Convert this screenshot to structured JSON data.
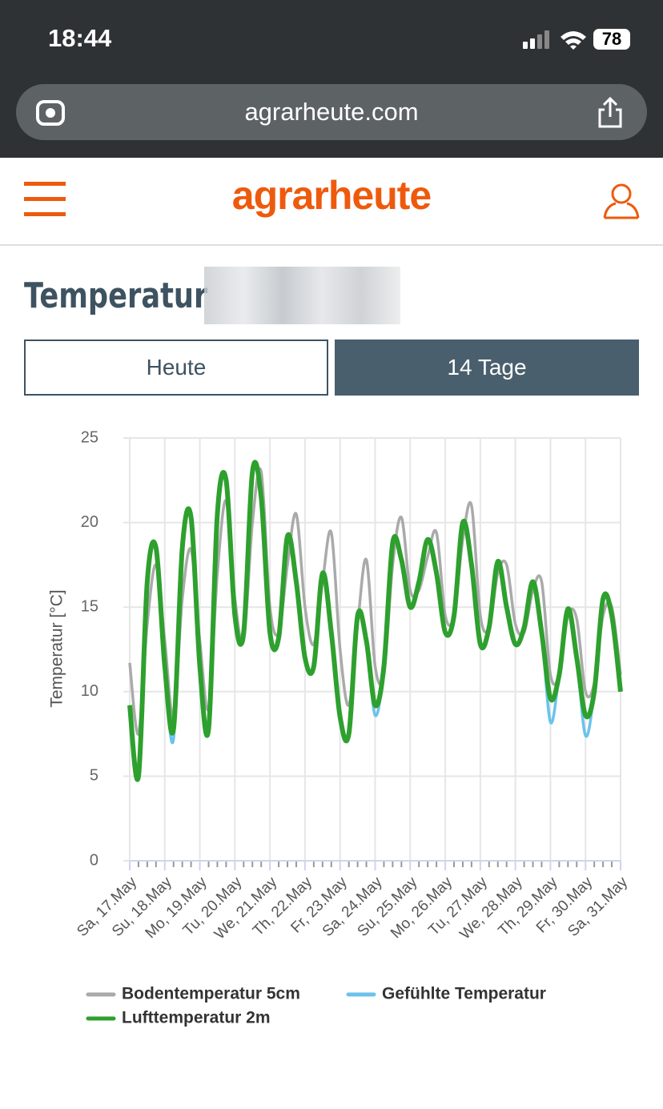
{
  "status_bar": {
    "time": "18:44",
    "battery": "78"
  },
  "browser": {
    "url": "agrarheute.com"
  },
  "header": {
    "logo": "agrarheute"
  },
  "heading": "Temperatur",
  "tabs": [
    "Heute",
    "14 Tage"
  ],
  "chart_data": {
    "type": "line",
    "y_label": "Temperatur [°C]",
    "x": [
      0,
      0.25,
      0.5,
      0.75,
      1,
      1.25,
      1.5,
      1.75,
      2,
      2.25,
      2.5,
      2.75,
      3,
      3.25,
      3.5,
      3.75,
      4,
      4.25,
      4.5,
      4.75,
      5,
      5.25,
      5.5,
      5.75,
      6,
      6.25,
      6.5,
      6.75,
      7,
      7.25,
      7.5,
      7.75,
      8,
      8.25,
      8.5,
      8.75,
      9,
      9.25,
      9.5,
      9.75,
      10,
      10.25,
      10.5,
      10.75,
      11,
      11.25,
      11.5,
      11.75,
      12,
      12.25,
      12.5,
      12.75,
      13,
      13.25,
      13.5,
      13.75,
      14
    ],
    "xlim": [
      0,
      14
    ],
    "xticks": [
      {
        "value": 0,
        "label": "Sa, 17.May"
      },
      {
        "value": 1,
        "label": "Su, 18.May"
      },
      {
        "value": 2,
        "label": "Mo, 19.May"
      },
      {
        "value": 3,
        "label": "Tu, 20.May"
      },
      {
        "value": 4,
        "label": "We, 21.May"
      },
      {
        "value": 5,
        "label": "Th, 22.May"
      },
      {
        "value": 6,
        "label": "Fr, 23.May"
      },
      {
        "value": 7,
        "label": "Sa, 24.May"
      },
      {
        "value": 8,
        "label": "Su, 25.May"
      },
      {
        "value": 9,
        "label": "Mo, 26.May"
      },
      {
        "value": 10,
        "label": "Tu, 27.May"
      },
      {
        "value": 11,
        "label": "We, 28.May"
      },
      {
        "value": 12,
        "label": "Th, 29.May"
      },
      {
        "value": 13,
        "label": "Fr, 30.May"
      },
      {
        "value": 14,
        "label": "Sa, 31.May"
      }
    ],
    "ylim": [
      0,
      25
    ],
    "yticks": [
      0,
      5,
      10,
      15,
      20,
      25
    ],
    "grid": true,
    "series": [
      {
        "name": "Bodentemperatur 5cm",
        "color": "#aaaaaa",
        "values": [
          11.7,
          7.5,
          14,
          17.5,
          13,
          8.5,
          15.5,
          18.4,
          13,
          9,
          17,
          21.3,
          15.5,
          13,
          20,
          23,
          15,
          13.5,
          17.5,
          20.5,
          15,
          12.8,
          16.5,
          19.4,
          12.5,
          9.2,
          14,
          17.8,
          11.5,
          11,
          17.5,
          20.3,
          16,
          16,
          18,
          19.4,
          14.5,
          14.5,
          19,
          21,
          14.5,
          13.8,
          17,
          17.5,
          14,
          13.5,
          16,
          16.5,
          11,
          11,
          14.5,
          14.3,
          10,
          10.5,
          14.5,
          15,
          11
        ]
      },
      {
        "name": "Gefühlte Temperatur",
        "color": "#6cc3ea",
        "values": [
          9.2,
          5,
          16.5,
          18.5,
          11.5,
          7.2,
          18.5,
          20.3,
          11.5,
          7.8,
          20.5,
          22.5,
          14.5,
          13.5,
          23,
          21.5,
          13.5,
          13.2,
          19.2,
          16.5,
          12,
          11.5,
          17,
          13.5,
          8.5,
          7.5,
          14.5,
          13,
          8.6,
          11.5,
          18.8,
          17.8,
          15,
          16.5,
          19,
          17,
          13.5,
          14.5,
          20,
          17.5,
          12.8,
          13.8,
          17.7,
          15,
          12.8,
          13.8,
          16.5,
          13.5,
          8.2,
          11,
          14.9,
          12,
          7.4,
          10,
          15.5,
          14.5,
          10
        ]
      },
      {
        "name": "Lufttemperatur 2m",
        "color": "#2ea02e",
        "values": [
          9.2,
          5,
          16.5,
          18.5,
          11.5,
          7.8,
          18.5,
          20.3,
          11.5,
          7.8,
          20.5,
          22.5,
          14.5,
          13.5,
          23,
          21.5,
          13.5,
          13.2,
          19.2,
          16.5,
          12,
          11.5,
          17,
          13.5,
          8.5,
          7.5,
          14.5,
          13,
          9.2,
          11.5,
          18.8,
          17.8,
          15,
          16.5,
          19,
          17,
          13.5,
          14.5,
          20,
          17.5,
          12.8,
          13.8,
          17.7,
          15,
          12.8,
          13.8,
          16.5,
          13.5,
          9.6,
          11,
          14.9,
          12,
          8.6,
          10,
          15.5,
          14.5,
          10
        ]
      }
    ]
  }
}
